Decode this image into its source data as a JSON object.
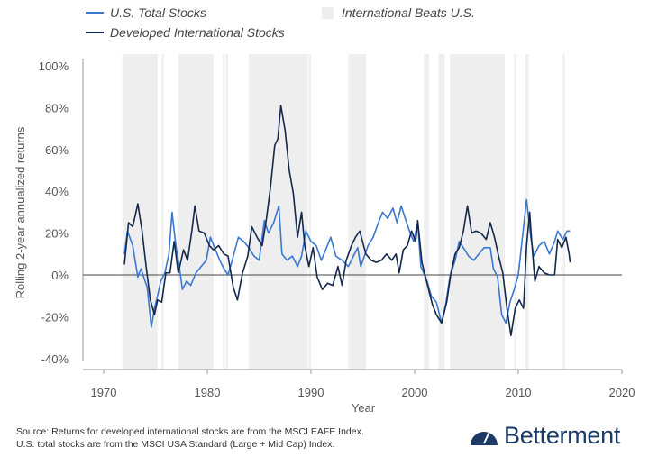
{
  "chart_data": {
    "type": "line",
    "xlabel": "Year",
    "ylabel": "Rolling 2-year annualized returns",
    "xlim": [
      1965,
      2020
    ],
    "ylim": [
      -40,
      100
    ],
    "x_ticks": [
      "1970",
      "1980",
      "1990",
      "2000",
      "2010",
      "2020"
    ],
    "y_ticks": [
      "100%",
      "80%",
      "60%",
      "40%",
      "20%",
      "0%",
      "-20%",
      "-40%"
    ],
    "legend": {
      "placement": "top",
      "entries": [
        "U.S. Total Stocks",
        "Developed International Stocks",
        "International Beats U.S."
      ]
    },
    "shaded_regions_name": "International Beats U.S.",
    "shaded_regions": [
      [
        1971.8,
        1975.2
      ],
      [
        1975.6,
        1975.8
      ],
      [
        1977.2,
        1980.6
      ],
      [
        1981.5,
        1981.7
      ],
      [
        1981.8,
        1982.0
      ],
      [
        1984.0,
        1989.7
      ],
      [
        1989.8,
        1990.0
      ],
      [
        1993.6,
        1993.7
      ],
      [
        1993.8,
        1995.3
      ],
      [
        2000.9,
        2001.4
      ],
      [
        2002.3,
        2002.9
      ],
      [
        2003.4,
        2008.7
      ],
      [
        2009.6,
        2009.8
      ],
      [
        2010.7,
        2011.0
      ],
      [
        2014.3,
        2014.5
      ]
    ],
    "series": [
      {
        "name": "U.S. Total Stocks",
        "color": "#3a78d0",
        "points": [
          [
            1972.0,
            10
          ],
          [
            1972.3,
            21
          ],
          [
            1972.8,
            14
          ],
          [
            1973.3,
            -1
          ],
          [
            1973.6,
            3
          ],
          [
            1974.2,
            -6
          ],
          [
            1974.6,
            -25
          ],
          [
            1974.9,
            -16
          ],
          [
            1975.2,
            -10
          ],
          [
            1975.5,
            -3
          ],
          [
            1975.9,
            1
          ],
          [
            1976.3,
            10
          ],
          [
            1976.6,
            30
          ],
          [
            1976.8,
            21
          ],
          [
            1977.0,
            13
          ],
          [
            1977.3,
            4
          ],
          [
            1977.6,
            -7
          ],
          [
            1978.0,
            -3
          ],
          [
            1978.4,
            -5
          ],
          [
            1978.9,
            1
          ],
          [
            1979.4,
            4
          ],
          [
            1979.9,
            7
          ],
          [
            1980.3,
            18
          ],
          [
            1980.7,
            13
          ],
          [
            1981.2,
            7
          ],
          [
            1981.6,
            3
          ],
          [
            1982.0,
            0
          ],
          [
            1982.4,
            7
          ],
          [
            1983.0,
            18
          ],
          [
            1983.5,
            16
          ],
          [
            1984.0,
            13
          ],
          [
            1984.5,
            9
          ],
          [
            1985.0,
            7
          ],
          [
            1985.5,
            26
          ],
          [
            1985.9,
            20
          ],
          [
            1986.4,
            25
          ],
          [
            1986.9,
            33
          ],
          [
            1987.2,
            10
          ],
          [
            1987.7,
            7
          ],
          [
            1988.2,
            9
          ],
          [
            1988.7,
            4
          ],
          [
            1989.1,
            9
          ],
          [
            1989.5,
            21
          ],
          [
            1990.0,
            16
          ],
          [
            1990.5,
            14
          ],
          [
            1991.0,
            7
          ],
          [
            1991.5,
            13
          ],
          [
            1991.9,
            18
          ],
          [
            1992.4,
            9
          ],
          [
            1993.0,
            7
          ],
          [
            1993.6,
            4
          ],
          [
            1994.1,
            9
          ],
          [
            1994.5,
            13
          ],
          [
            1994.8,
            4
          ],
          [
            1995.5,
            14
          ],
          [
            1996.0,
            18
          ],
          [
            1996.5,
            25
          ],
          [
            1996.9,
            30
          ],
          [
            1997.4,
            27
          ],
          [
            1997.9,
            32
          ],
          [
            1998.3,
            25
          ],
          [
            1998.7,
            33
          ],
          [
            1999.1,
            27
          ],
          [
            1999.5,
            21
          ],
          [
            1999.9,
            16
          ],
          [
            2000.3,
            25
          ],
          [
            2000.6,
            4
          ],
          [
            2001.2,
            -3
          ],
          [
            2001.6,
            -10
          ],
          [
            2002.1,
            -13
          ],
          [
            2002.6,
            -23
          ],
          [
            2003.0,
            -14
          ],
          [
            2003.4,
            -1
          ],
          [
            2003.9,
            7
          ],
          [
            2004.3,
            16
          ],
          [
            2004.7,
            13
          ],
          [
            2005.2,
            9
          ],
          [
            2005.7,
            7
          ],
          [
            2006.2,
            10
          ],
          [
            2006.7,
            13
          ],
          [
            2007.3,
            13
          ],
          [
            2007.6,
            3
          ],
          [
            2008.0,
            -1
          ],
          [
            2008.4,
            -19
          ],
          [
            2008.8,
            -23
          ],
          [
            2009.2,
            -13
          ],
          [
            2009.6,
            -7
          ],
          [
            2010.0,
            0
          ],
          [
            2010.4,
            18
          ],
          [
            2010.8,
            36
          ],
          [
            2011.2,
            18
          ],
          [
            2011.5,
            9
          ],
          [
            2012.0,
            14
          ],
          [
            2012.5,
            16
          ],
          [
            2013.0,
            10
          ],
          [
            2013.5,
            16
          ],
          [
            2013.8,
            21
          ],
          [
            2014.3,
            17
          ],
          [
            2014.7,
            21
          ],
          [
            2015.0,
            21
          ]
        ]
      },
      {
        "name": "Developed International Stocks",
        "color": "#14284b",
        "points": [
          [
            1972.0,
            5
          ],
          [
            1972.4,
            25
          ],
          [
            1972.8,
            23
          ],
          [
            1973.3,
            34
          ],
          [
            1973.7,
            21
          ],
          [
            1974.1,
            4
          ],
          [
            1974.5,
            -12
          ],
          [
            1974.9,
            -19
          ],
          [
            1975.2,
            -12
          ],
          [
            1975.6,
            -13
          ],
          [
            1976.0,
            1
          ],
          [
            1976.4,
            1
          ],
          [
            1976.8,
            16
          ],
          [
            1977.2,
            1
          ],
          [
            1977.7,
            12
          ],
          [
            1978.1,
            7
          ],
          [
            1978.5,
            21
          ],
          [
            1978.8,
            33
          ],
          [
            1979.2,
            21
          ],
          [
            1979.7,
            20
          ],
          [
            1980.2,
            14
          ],
          [
            1980.6,
            12
          ],
          [
            1981.1,
            14
          ],
          [
            1981.6,
            10
          ],
          [
            1982.0,
            9
          ],
          [
            1982.5,
            -6
          ],
          [
            1982.9,
            -12
          ],
          [
            1983.4,
            1
          ],
          [
            1983.9,
            9
          ],
          [
            1984.3,
            23
          ],
          [
            1984.8,
            18
          ],
          [
            1985.3,
            14
          ],
          [
            1985.7,
            27
          ],
          [
            1986.1,
            42
          ],
          [
            1986.5,
            62
          ],
          [
            1986.8,
            65
          ],
          [
            1987.1,
            81
          ],
          [
            1987.5,
            69
          ],
          [
            1987.9,
            50
          ],
          [
            1988.3,
            39
          ],
          [
            1988.7,
            18
          ],
          [
            1989.1,
            30
          ],
          [
            1989.4,
            14
          ],
          [
            1989.8,
            4
          ],
          [
            1990.2,
            13
          ],
          [
            1990.6,
            -1
          ],
          [
            1991.1,
            -7
          ],
          [
            1991.6,
            -4
          ],
          [
            1992.1,
            -5
          ],
          [
            1992.6,
            4
          ],
          [
            1993.0,
            -5
          ],
          [
            1993.4,
            7
          ],
          [
            1993.9,
            14
          ],
          [
            1994.3,
            18
          ],
          [
            1994.7,
            21
          ],
          [
            1995.3,
            10
          ],
          [
            1995.8,
            7
          ],
          [
            1996.3,
            6
          ],
          [
            1996.8,
            7
          ],
          [
            1997.3,
            10
          ],
          [
            1997.8,
            7
          ],
          [
            1998.2,
            10
          ],
          [
            1998.5,
            1
          ],
          [
            1998.9,
            12
          ],
          [
            1999.3,
            14
          ],
          [
            1999.7,
            21
          ],
          [
            2000.1,
            16
          ],
          [
            2000.3,
            26
          ],
          [
            2000.7,
            6
          ],
          [
            2001.2,
            -4
          ],
          [
            2001.7,
            -14
          ],
          [
            2002.1,
            -19
          ],
          [
            2002.6,
            -23
          ],
          [
            2003.1,
            -13
          ],
          [
            2003.5,
            1
          ],
          [
            2003.9,
            10
          ],
          [
            2004.3,
            13
          ],
          [
            2004.7,
            21
          ],
          [
            2005.1,
            33
          ],
          [
            2005.5,
            20
          ],
          [
            2005.9,
            21
          ],
          [
            2006.4,
            20
          ],
          [
            2006.9,
            17
          ],
          [
            2007.3,
            25
          ],
          [
            2007.7,
            18
          ],
          [
            2008.1,
            9
          ],
          [
            2008.5,
            1
          ],
          [
            2008.9,
            -16
          ],
          [
            2009.3,
            -29
          ],
          [
            2009.7,
            -16
          ],
          [
            2010.1,
            -12
          ],
          [
            2010.5,
            -16
          ],
          [
            2010.8,
            14
          ],
          [
            2011.1,
            30
          ],
          [
            2011.3,
            16
          ],
          [
            2011.6,
            -3
          ],
          [
            2012.0,
            4
          ],
          [
            2012.5,
            1
          ],
          [
            2013.0,
            0
          ],
          [
            2013.5,
            0
          ],
          [
            2013.8,
            17
          ],
          [
            2014.2,
            13
          ],
          [
            2014.6,
            18
          ],
          [
            2014.9,
            10
          ],
          [
            2015.0,
            6
          ]
        ]
      }
    ],
    "shade_color": "#eeeeee",
    "grid": false
  },
  "source_lines": [
    "Source: Returns for developed international stocks are from the MSCI EAFE Index.",
    "U.S. total stocks are from the MSCI USA Standard (Large + Mid Cap) Index."
  ],
  "brand": {
    "name": "Betterment",
    "color": "#1b3a66"
  }
}
